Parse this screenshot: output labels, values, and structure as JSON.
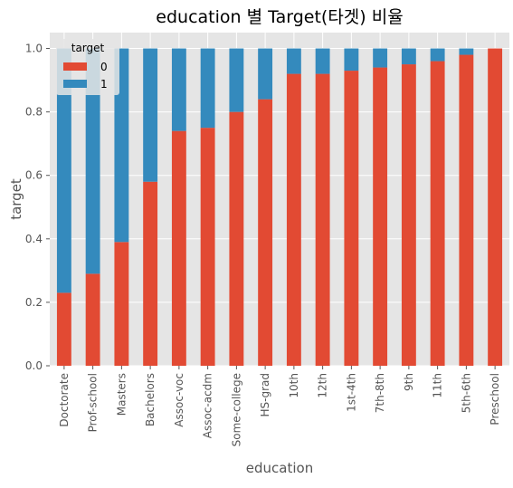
{
  "chart_data": {
    "type": "bar",
    "stacked": true,
    "title": "education 별 Target(타겟) 비율",
    "xlabel": "education",
    "ylabel": "target",
    "ylim": [
      0,
      1.05
    ],
    "yticks": [
      "0.0",
      "0.2",
      "0.4",
      "0.6",
      "0.8",
      "1.0"
    ],
    "grid": true,
    "legend": {
      "title": "target",
      "placement": "top-left"
    },
    "categories": [
      "Doctorate",
      "Prof-school",
      "Masters",
      "Bachelors",
      "Assoc-voc",
      "Assoc-acdm",
      "Some-college",
      "HS-grad",
      "10th",
      "12th",
      "1st-4th",
      "7th-8th",
      "9th",
      "11th",
      "5th-6th",
      "Preschool"
    ],
    "series": [
      {
        "name": "0",
        "color": "#E24A33",
        "values": [
          0.23,
          0.29,
          0.39,
          0.58,
          0.74,
          0.75,
          0.8,
          0.84,
          0.92,
          0.92,
          0.93,
          0.94,
          0.95,
          0.96,
          0.98,
          1.0
        ]
      },
      {
        "name": "1",
        "color": "#348ABD",
        "values": [
          0.77,
          0.71,
          0.61,
          0.42,
          0.26,
          0.25,
          0.2,
          0.16,
          0.08,
          0.08,
          0.07,
          0.06,
          0.05,
          0.04,
          0.02,
          0.0
        ]
      }
    ]
  },
  "style": {
    "plot_background": "#E5E5E5",
    "grid_color": "#FFFFFF",
    "text_color": "#000000",
    "tick_color": "#555555",
    "axis_label_color": "#555555"
  }
}
